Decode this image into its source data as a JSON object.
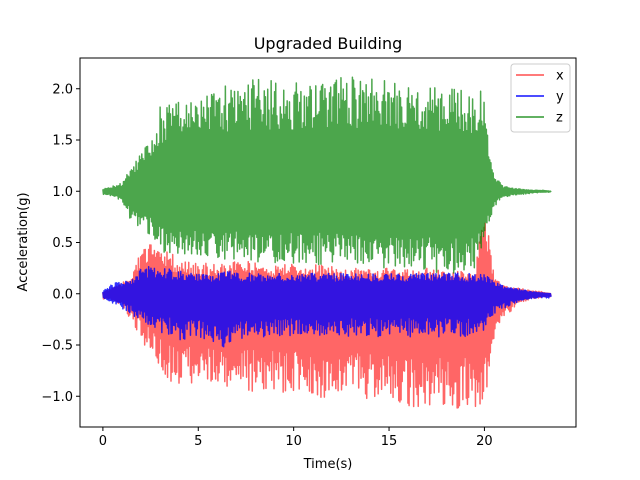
{
  "chart_data": {
    "type": "line",
    "title": "Upgraded Building",
    "xlabel": "Time(s)",
    "ylabel": "Acceleration(g)",
    "xlim": [
      -1.2,
      24.8
    ],
    "ylim": [
      -1.3,
      2.3
    ],
    "xticks": [
      0,
      5,
      10,
      15,
      20
    ],
    "yticks": [
      -1.0,
      -0.5,
      0.0,
      0.5,
      1.0,
      1.5,
      2.0
    ],
    "ytick_labels": [
      "−1.0",
      "−0.5",
      "0.0",
      "0.5",
      "1.0",
      "1.5",
      "2.0"
    ],
    "grid": false,
    "legend_position": "top-right",
    "sample_interval_s": 0.5,
    "series": [
      {
        "name": "x",
        "color": "#ff0000",
        "opacity": 0.6,
        "offset": 0.0,
        "x": [
          0,
          0.5,
          1,
          1.5,
          2,
          2.5,
          3,
          3.5,
          4,
          4.5,
          5,
          5.5,
          6,
          6.5,
          7,
          7.5,
          8,
          8.5,
          9,
          9.5,
          10,
          10.5,
          11,
          11.5,
          12,
          12.5,
          13,
          13.5,
          14,
          14.5,
          15,
          15.5,
          16,
          16.5,
          17,
          17.5,
          18,
          18.5,
          19,
          19.5,
          20,
          20.5,
          21,
          21.5,
          22,
          22.5,
          23,
          23.5
        ],
        "upper": [
          0.02,
          0.06,
          0.1,
          0.2,
          0.45,
          0.5,
          0.4,
          0.42,
          0.32,
          0.32,
          0.3,
          0.3,
          0.28,
          0.3,
          0.34,
          0.32,
          0.3,
          0.3,
          0.28,
          0.3,
          0.3,
          0.28,
          0.3,
          0.28,
          0.28,
          0.22,
          0.25,
          0.25,
          0.24,
          0.25,
          0.25,
          0.22,
          0.24,
          0.22,
          0.25,
          0.24,
          0.22,
          0.22,
          0.22,
          0.2,
          0.9,
          0.2,
          0.08,
          0.06,
          0.05,
          0.03,
          0.02,
          0.0
        ],
        "lower": [
          -0.05,
          -0.08,
          -0.1,
          -0.3,
          -0.45,
          -0.6,
          -0.75,
          -0.85,
          -0.88,
          -0.92,
          -0.9,
          -0.9,
          -0.92,
          -0.95,
          -0.96,
          -0.95,
          -0.97,
          -0.98,
          -0.98,
          -0.98,
          -1.0,
          -1.0,
          -1.03,
          -1.02,
          -1.02,
          -1.05,
          -1.05,
          -1.03,
          -1.05,
          -1.08,
          -1.08,
          -1.1,
          -1.1,
          -1.1,
          -1.12,
          -1.12,
          -1.12,
          -1.13,
          -1.12,
          -1.12,
          -1.1,
          -0.45,
          -0.25,
          -0.15,
          -0.08,
          -0.05,
          -0.04,
          -0.03
        ]
      },
      {
        "name": "y",
        "color": "#0000ff",
        "opacity": 0.8,
        "offset": 0.0,
        "x": [
          0,
          0.5,
          1,
          1.5,
          2,
          2.5,
          3,
          3.5,
          4,
          4.5,
          5,
          5.5,
          6,
          6.5,
          7,
          7.5,
          8,
          8.5,
          9,
          9.5,
          10,
          10.5,
          11,
          11.5,
          12,
          12.5,
          13,
          13.5,
          14,
          14.5,
          15,
          15.5,
          16,
          16.5,
          17,
          17.5,
          18,
          18.5,
          19,
          19.5,
          20,
          20.5,
          21,
          21.5,
          22,
          22.5,
          23,
          23.5
        ],
        "upper": [
          0.03,
          0.1,
          0.12,
          0.15,
          0.25,
          0.28,
          0.25,
          0.25,
          0.22,
          0.22,
          0.2,
          0.2,
          0.2,
          0.22,
          0.22,
          0.2,
          0.2,
          0.2,
          0.2,
          0.2,
          0.2,
          0.2,
          0.2,
          0.2,
          0.2,
          0.2,
          0.2,
          0.2,
          0.2,
          0.2,
          0.2,
          0.2,
          0.2,
          0.2,
          0.2,
          0.2,
          0.2,
          0.2,
          0.2,
          0.2,
          0.2,
          0.12,
          0.08,
          0.06,
          0.04,
          0.02,
          0.01,
          0.0
        ],
        "lower": [
          -0.05,
          -0.1,
          -0.15,
          -0.2,
          -0.3,
          -0.35,
          -0.4,
          -0.4,
          -0.45,
          -0.45,
          -0.45,
          -0.45,
          -0.5,
          -0.55,
          -0.45,
          -0.45,
          -0.42,
          -0.42,
          -0.42,
          -0.42,
          -0.42,
          -0.42,
          -0.42,
          -0.42,
          -0.42,
          -0.42,
          -0.42,
          -0.42,
          -0.42,
          -0.42,
          -0.42,
          -0.42,
          -0.42,
          -0.42,
          -0.42,
          -0.42,
          -0.42,
          -0.42,
          -0.42,
          -0.42,
          -0.4,
          -0.2,
          -0.15,
          -0.1,
          -0.06,
          -0.05,
          -0.04,
          -0.04
        ]
      },
      {
        "name": "z",
        "color": "#008000",
        "opacity": 0.7,
        "offset": 1.0,
        "x": [
          0,
          0.5,
          1,
          1.5,
          2,
          2.5,
          3,
          3.5,
          4,
          4.5,
          5,
          5.5,
          6,
          6.5,
          7,
          7.5,
          8,
          8.5,
          9,
          9.5,
          10,
          10.5,
          11,
          11.5,
          12,
          12.5,
          13,
          13.5,
          14,
          14.5,
          15,
          15.5,
          16,
          16.5,
          17,
          17.5,
          18,
          18.5,
          19,
          19.5,
          20,
          20.5,
          21,
          21.5,
          22,
          22.5,
          23,
          23.5
        ],
        "upper": [
          1.02,
          1.05,
          1.08,
          1.25,
          1.4,
          1.6,
          1.83,
          1.9,
          1.9,
          1.95,
          2.0,
          1.93,
          1.97,
          2.05,
          2.0,
          2.05,
          2.1,
          2.08,
          2.08,
          2.05,
          2.05,
          2.1,
          2.08,
          2.1,
          2.12,
          2.12,
          2.12,
          2.1,
          2.12,
          2.1,
          2.1,
          2.05,
          2.06,
          2.05,
          2.05,
          2.05,
          2.02,
          2.0,
          2.02,
          2.02,
          1.95,
          1.15,
          1.05,
          1.03,
          1.02,
          1.01,
          1.01,
          1.0
        ],
        "lower": [
          0.97,
          0.95,
          0.9,
          0.7,
          0.62,
          0.55,
          0.4,
          0.38,
          0.38,
          0.38,
          0.35,
          0.35,
          0.35,
          0.33,
          0.33,
          0.3,
          0.3,
          0.3,
          0.3,
          0.3,
          0.3,
          0.3,
          0.28,
          0.28,
          0.28,
          0.28,
          0.28,
          0.28,
          0.28,
          0.25,
          0.25,
          0.25,
          0.22,
          0.22,
          0.2,
          0.2,
          0.2,
          0.2,
          0.2,
          0.2,
          0.5,
          0.85,
          0.92,
          0.96,
          0.97,
          0.98,
          0.99,
          0.99
        ]
      }
    ]
  }
}
